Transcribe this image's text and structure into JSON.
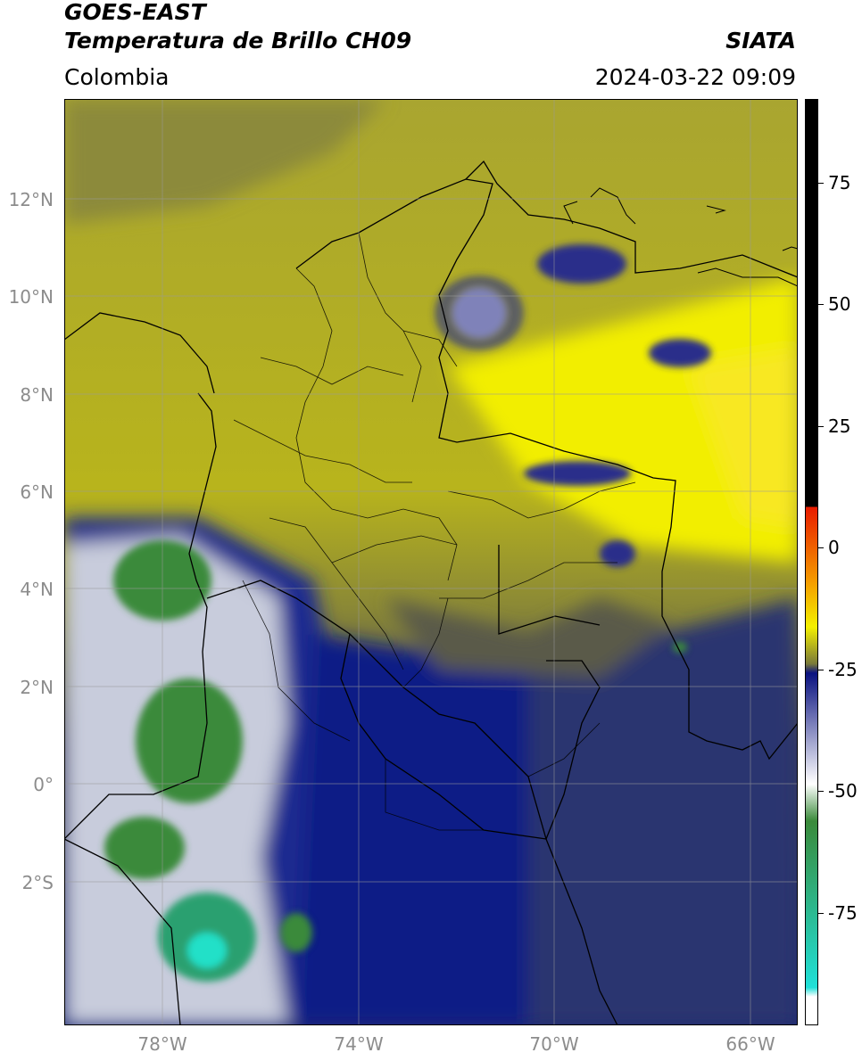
{
  "header": {
    "satellite": "GOES-EAST",
    "product": "Temperatura de Brillo CH09",
    "brand": "SIATA",
    "region": "Colombia",
    "datetime": "2024-03-22 09:09"
  },
  "map": {
    "lat_labels": [
      "12°N",
      "10°N",
      "8°N",
      "6°N",
      "4°N",
      "2°N",
      "0°",
      "2°S"
    ],
    "lat_values": [
      12,
      10,
      8,
      6,
      4,
      2,
      0,
      -2
    ],
    "lon_labels": [
      "78°W",
      "74°W",
      "70°W",
      "66°W"
    ],
    "lon_values": [
      -78,
      -74,
      -70,
      -66
    ],
    "extent": {
      "lon_min": -80,
      "lon_max": -65.1,
      "lat_min": -4.9,
      "lat_max": 14.0
    },
    "grid": true
  },
  "colorbar": {
    "tick_labels": [
      "75",
      "50",
      "25",
      "0",
      "-25",
      "-50",
      "-75"
    ],
    "tick_values": [
      75,
      50,
      25,
      0,
      -25,
      -50,
      -75
    ],
    "range": [
      -95,
      90
    ],
    "colors": {
      "warm_black": "#000000",
      "red": "#e81a00",
      "orange": "#f59a00",
      "yellow": "#f4f000",
      "olive": "#7a7a3a",
      "navy": "#0a1280",
      "white": "#ffffff",
      "green": "#3a8a3a",
      "cyan": "#20e0d8"
    }
  }
}
